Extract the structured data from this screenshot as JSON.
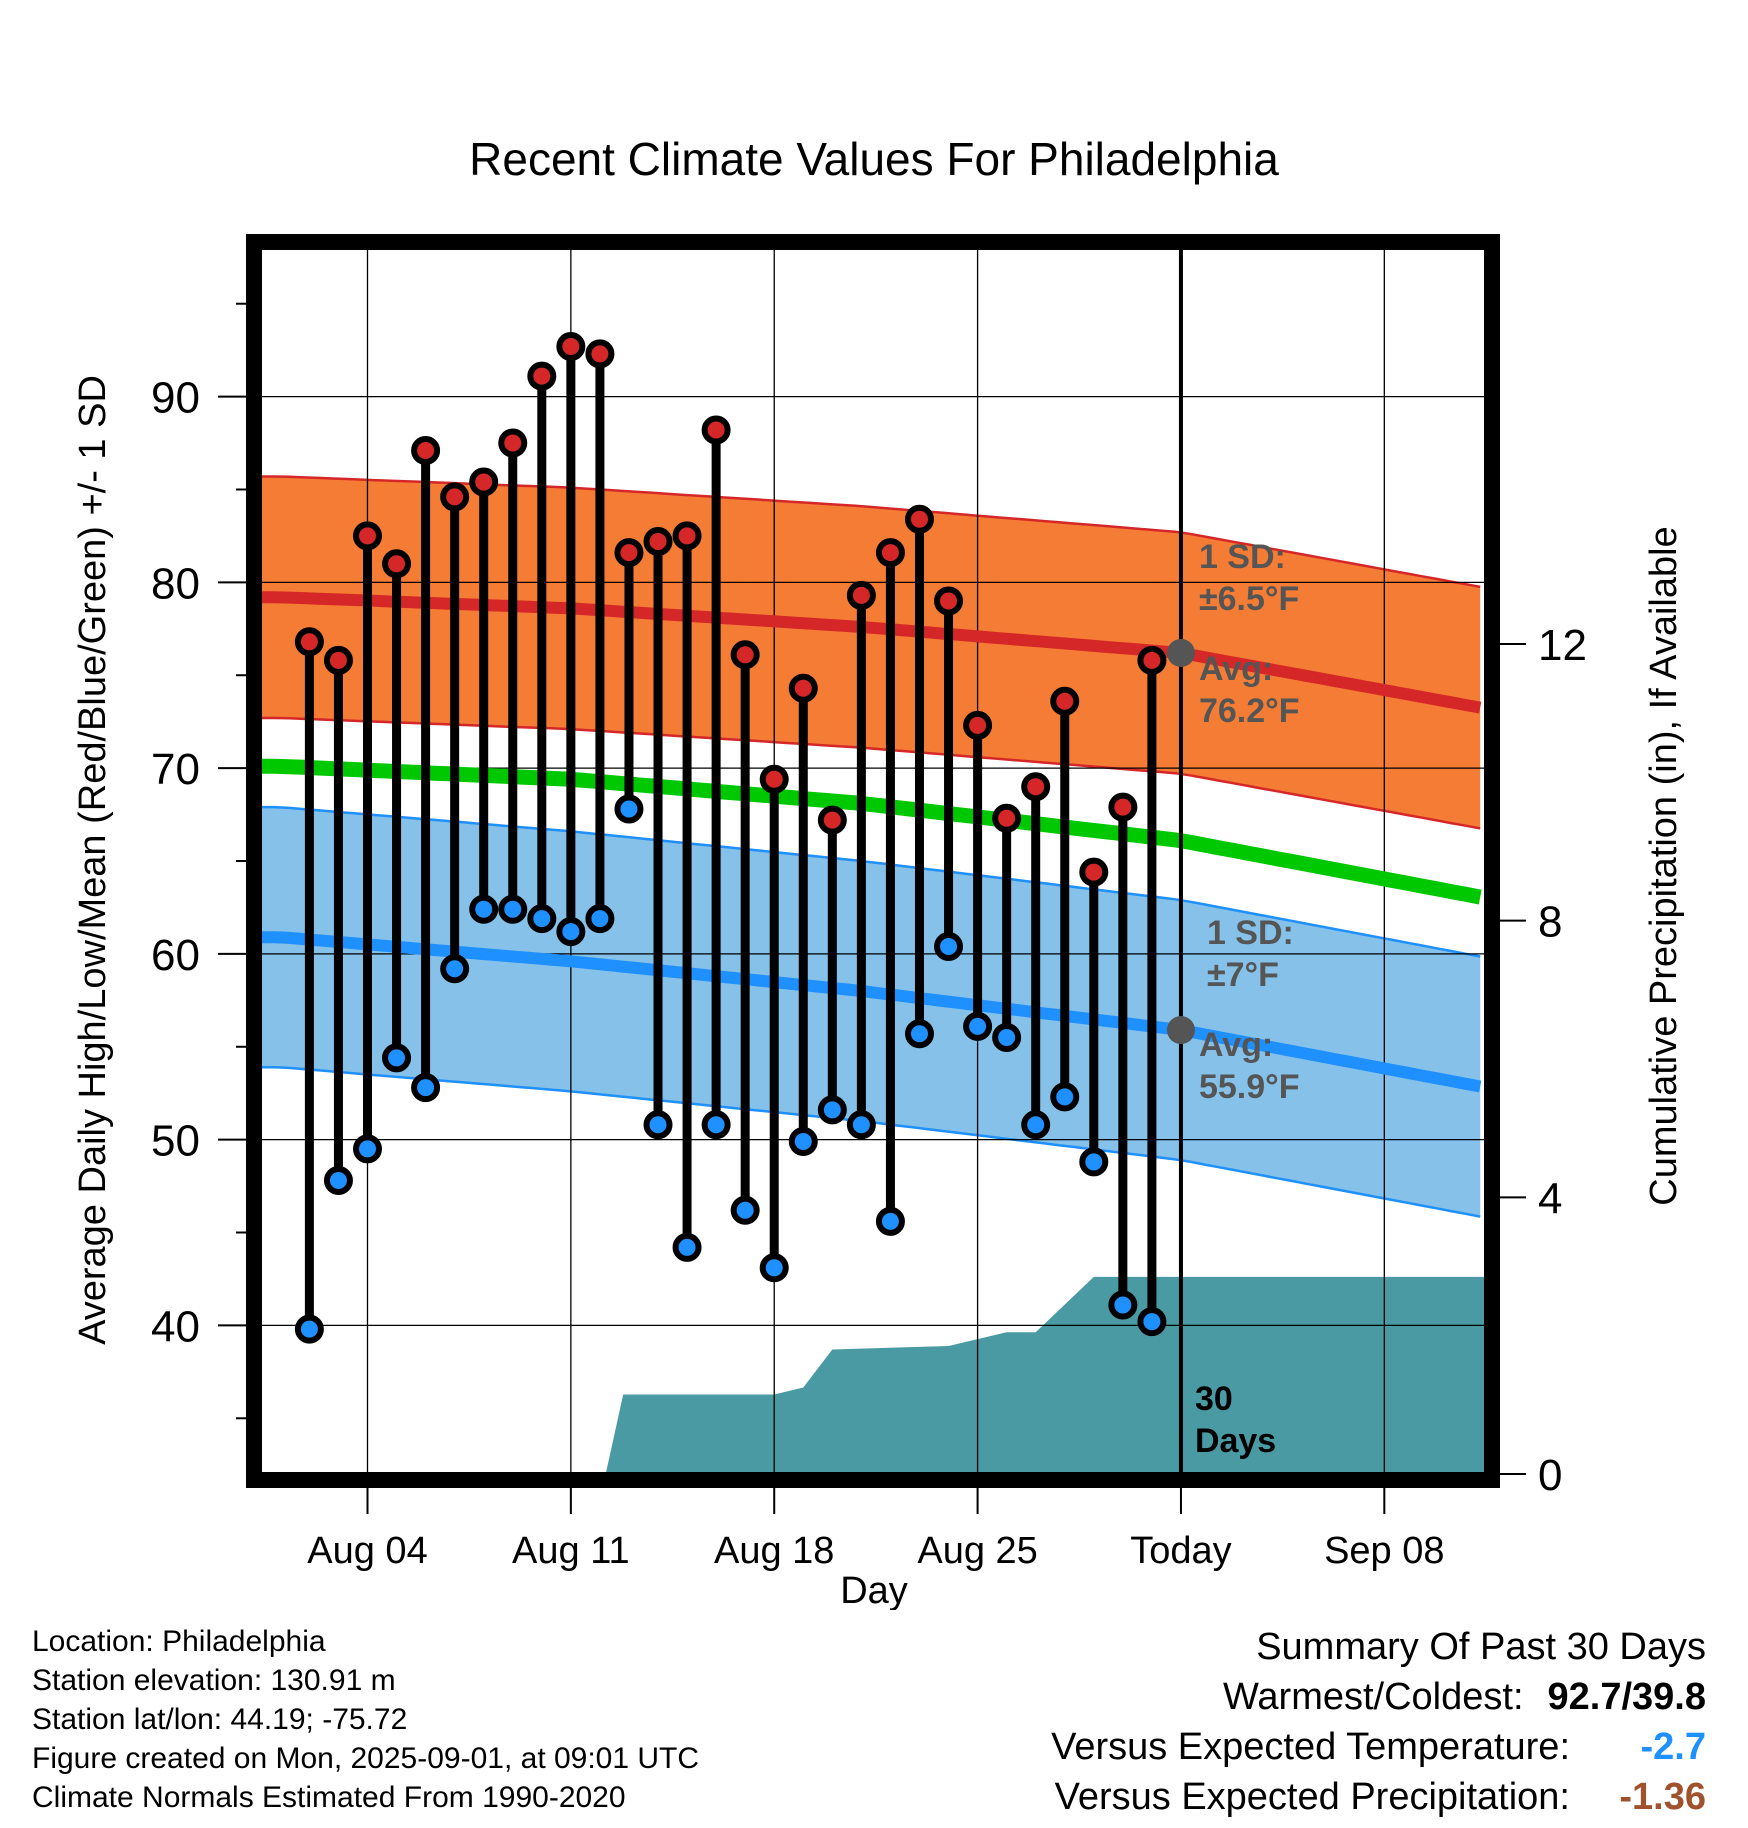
{
  "chart_data": {
    "type": "line",
    "title": "Recent Climate Values For Philadelphia",
    "xlabel": "Day",
    "ylabel": "Average Daily High/Low/Mean (Red/Blue/Green) +/- 1 SD",
    "y2label": "Cumulative Precipitation (in), If Available",
    "ylim": [
      32,
      98
    ],
    "y2lim": [
      0,
      24
    ],
    "xlim": [
      -0.7,
      41.5
    ],
    "grid": true,
    "x_ticks": [
      {
        "day": 3,
        "label": "Aug 04"
      },
      {
        "day": 10,
        "label": "Aug 11"
      },
      {
        "day": 17,
        "label": "Aug 18"
      },
      {
        "day": 24,
        "label": "Aug 25"
      },
      {
        "day": 31,
        "label": "Today"
      },
      {
        "day": 38,
        "label": "Sep 08"
      }
    ],
    "y_ticks": [
      40,
      50,
      60,
      70,
      80,
      90
    ],
    "y2_ticks": [
      0,
      4,
      8,
      12
    ],
    "today_day": 31,
    "daily_x_start": 1,
    "daily_high": [
      76.8,
      75.8,
      82.5,
      81.0,
      87.1,
      84.6,
      85.4,
      87.5,
      91.1,
      92.7,
      92.3,
      81.6,
      82.2,
      82.5,
      88.2,
      76.1,
      69.4,
      74.3,
      67.2,
      79.3,
      81.6,
      83.4,
      79.0,
      72.3,
      67.3,
      69.0,
      73.6,
      64.4,
      67.9,
      75.8
    ],
    "daily_low": [
      39.8,
      47.8,
      49.5,
      54.4,
      52.8,
      59.2,
      62.4,
      62.4,
      61.9,
      61.2,
      61.9,
      67.8,
      50.8,
      44.2,
      50.8,
      46.2,
      43.1,
      49.9,
      51.6,
      50.8,
      45.6,
      55.7,
      60.4,
      56.1,
      55.5,
      50.8,
      52.3,
      48.8,
      41.1,
      40.2
    ],
    "normal_days": [
      0,
      10,
      20,
      31,
      41.5
    ],
    "normal_high": [
      79.2,
      78.6,
      77.6,
      76.2,
      73.2
    ],
    "normal_low": [
      60.9,
      59.6,
      58.0,
      55.9,
      52.8
    ],
    "normal_mean": [
      70.1,
      69.4,
      68.1,
      66.1,
      63.0
    ],
    "high_sd": 6.5,
    "low_sd": 7.0,
    "precip_days": [
      0,
      11.2,
      11.8,
      17.0,
      18.0,
      19.0,
      23.0,
      24.0,
      25.0,
      26.0,
      28.0,
      41.5
    ],
    "precip_cum": [
      0,
      0,
      1.15,
      1.15,
      1.25,
      1.8,
      1.85,
      1.95,
      2.05,
      2.05,
      2.85,
      2.85
    ],
    "annotations": {
      "high_sd_title": "1 SD:",
      "high_sd_value": "±6.5°F",
      "high_avg_title": "Avg:",
      "high_avg_value": "76.2°F",
      "low_sd_title": "1 SD:",
      "low_sd_value": "±7°F",
      "low_avg_title": "Avg:",
      "low_avg_value": "55.9°F",
      "precip_label_1": "30",
      "precip_label_2": "Days"
    },
    "colors": {
      "high_band": "#f57c34",
      "high_line": "#d62728",
      "low_band": "#85c1e9",
      "low_line": "#1e90ff",
      "mean_line": "#00c800",
      "precip_fill": "#4a9aa4",
      "high_marker": "#d62728",
      "low_marker": "#1e90ff",
      "annotation_text": "#555555"
    }
  },
  "footer": {
    "location": "Location: Philadelphia",
    "elevation": "Station elevation: 130.91 m",
    "latlon": "Station lat/lon: 44.19; -75.72",
    "created": "Figure created on Mon, 2025-09-01, at 09:01 UTC",
    "normals": "Climate Normals Estimated From 1990-2020"
  },
  "summary": {
    "title": "Summary Of Past 30 Days",
    "warm_cold_label": "Warmest/Coldest:",
    "warm_cold_value": "92.7/39.8",
    "temp_label": "Versus Expected Temperature:",
    "temp_value": "-2.7",
    "precip_label": "Versus Expected Precipitation:",
    "precip_value": "-1.36"
  }
}
